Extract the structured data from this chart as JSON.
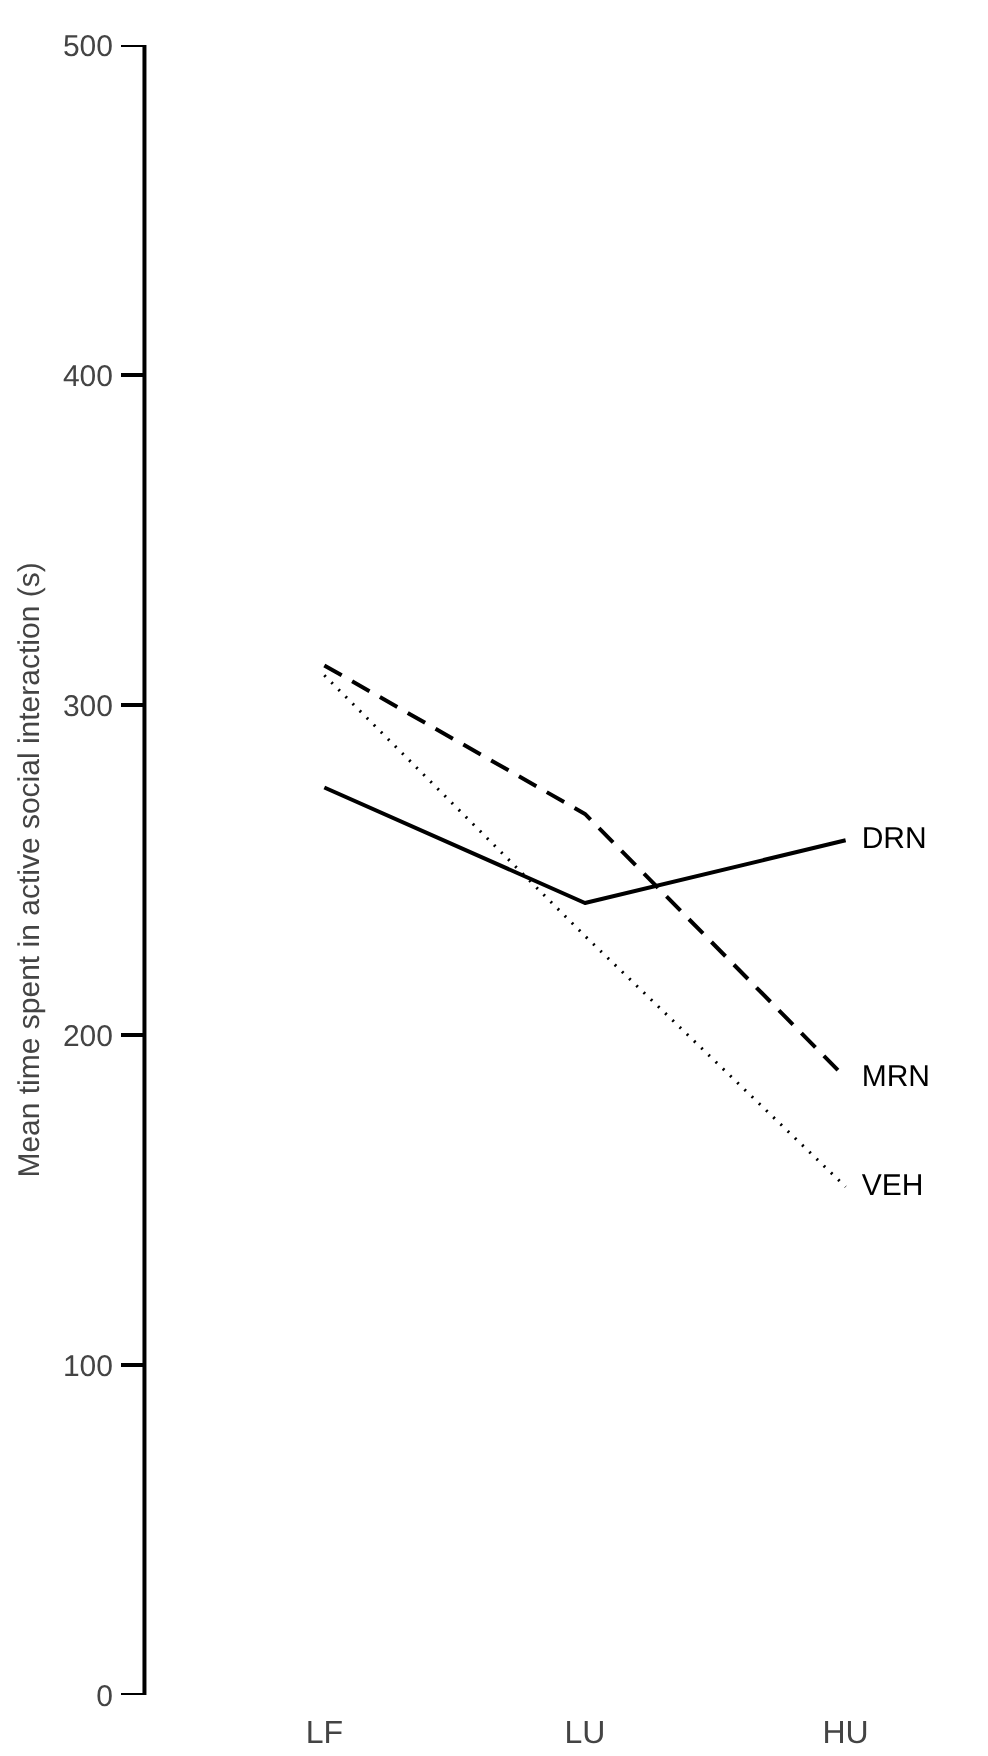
{
  "chart_data": {
    "type": "line",
    "ylabel": "Mean time spent in active social interaction (s)",
    "categories": [
      "LF",
      "LU",
      "HU"
    ],
    "series": [
      {
        "name": "DRN",
        "color": "#000000",
        "line_style": "solid",
        "values": [
          275,
          240,
          259
        ]
      },
      {
        "name": "MRN",
        "color": "#000000",
        "line_style": "dashed",
        "values": [
          312,
          267,
          187
        ]
      },
      {
        "name": "VEH",
        "color": "#000000",
        "line_style": "dotted",
        "values": [
          309,
          230,
          154
        ]
      }
    ],
    "ylim": [
      0,
      500
    ],
    "yticks": [
      0,
      100,
      200,
      300,
      400,
      500
    ],
    "grid": false,
    "marker": "none"
  }
}
